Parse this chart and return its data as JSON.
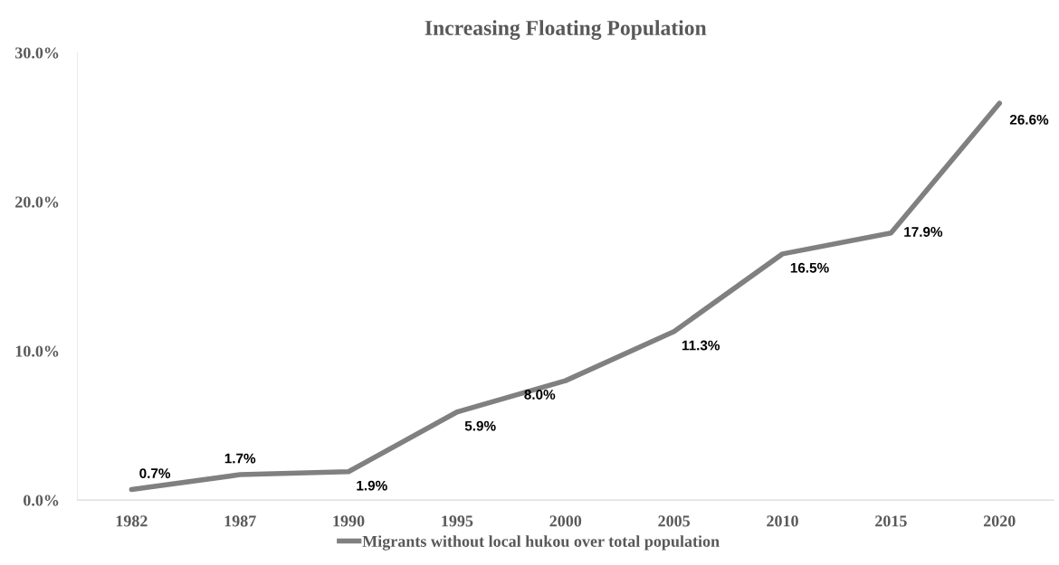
{
  "chart_data": {
    "type": "line",
    "title": "Increasing Floating Population",
    "categories": [
      "1982",
      "1987",
      "1990",
      "1995",
      "2000",
      "2005",
      "2010",
      "2015",
      "2020"
    ],
    "series": [
      {
        "name": "Migrants without local hukou over total population",
        "color": "#808080",
        "values": [
          0.7,
          1.7,
          1.9,
          5.9,
          8.0,
          11.3,
          16.5,
          17.9,
          26.6
        ],
        "value_labels": [
          "0.7%",
          "1.7%",
          "1.9%",
          "5.9%",
          "8.0%",
          "11.3%",
          "16.5%",
          "17.9%",
          "26.6%"
        ]
      }
    ],
    "ylim": [
      0,
      30
    ],
    "yticks": [
      {
        "value": 0,
        "label": "0.0%"
      },
      {
        "value": 10,
        "label": "10.0%"
      },
      {
        "value": 20,
        "label": "20.0%"
      },
      {
        "value": 30,
        "label": "30.0%"
      }
    ],
    "grid": false,
    "legend": "bottom",
    "marker": "none",
    "line_style": "solid"
  }
}
